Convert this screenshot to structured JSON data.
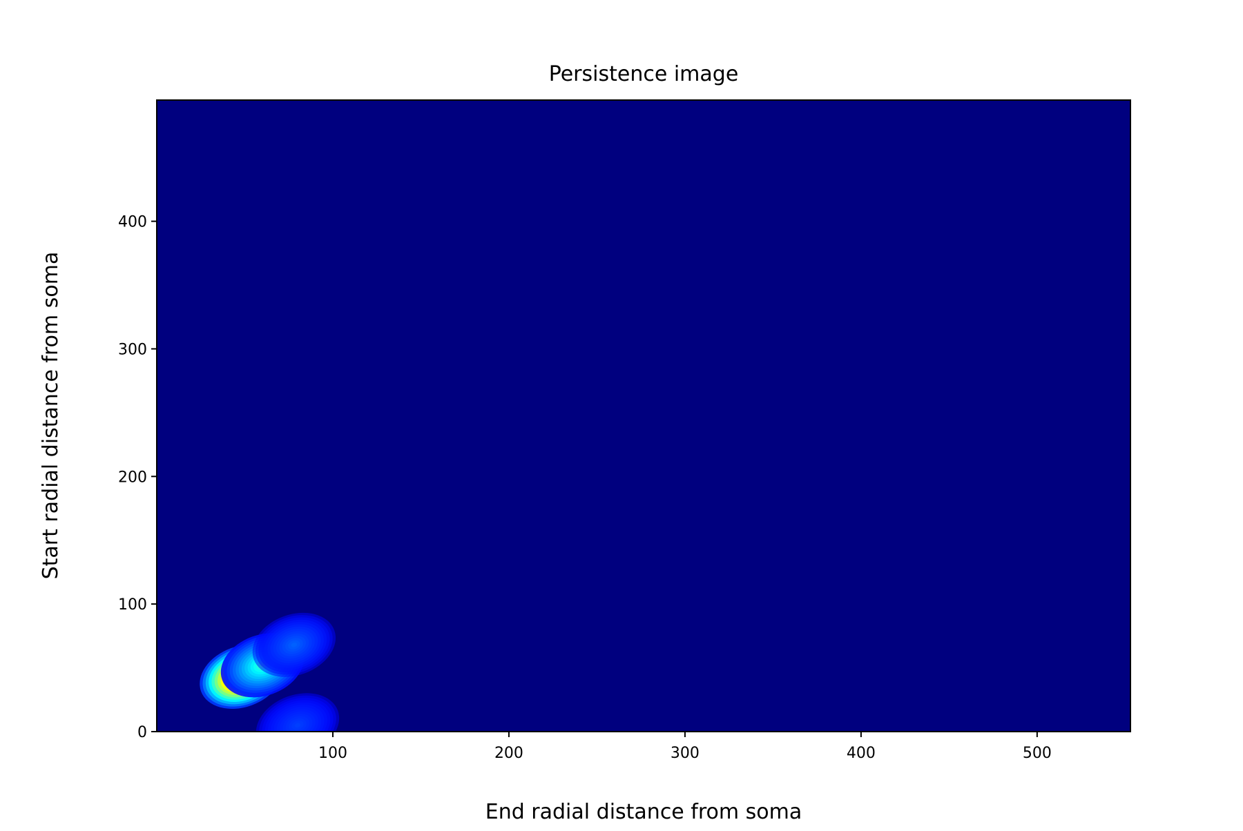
{
  "chart_data": {
    "type": "heatmap",
    "title": "Persistence image",
    "xlabel": "End radial distance from soma",
    "ylabel": "Start radial distance from soma",
    "xlim": [
      0,
      553
    ],
    "ylim": [
      0,
      495
    ],
    "x_ticks": [
      100,
      200,
      300,
      400,
      500
    ],
    "y_ticks": [
      0,
      100,
      200,
      300,
      400
    ],
    "x_tick_labels": [
      "100",
      "200",
      "300",
      "400",
      "500"
    ],
    "y_tick_labels": [
      "0",
      "100",
      "200",
      "300",
      "400"
    ],
    "grid": false,
    "colormap": "jet",
    "background_color": "#00007f",
    "peaks": [
      {
        "x": 48,
        "y": 43,
        "intensity": 1.0
      },
      {
        "x": 60,
        "y": 52,
        "intensity": 0.35
      },
      {
        "x": 78,
        "y": 68,
        "intensity": 0.12
      },
      {
        "x": 80,
        "y": 5,
        "intensity": 0.08
      }
    ]
  }
}
